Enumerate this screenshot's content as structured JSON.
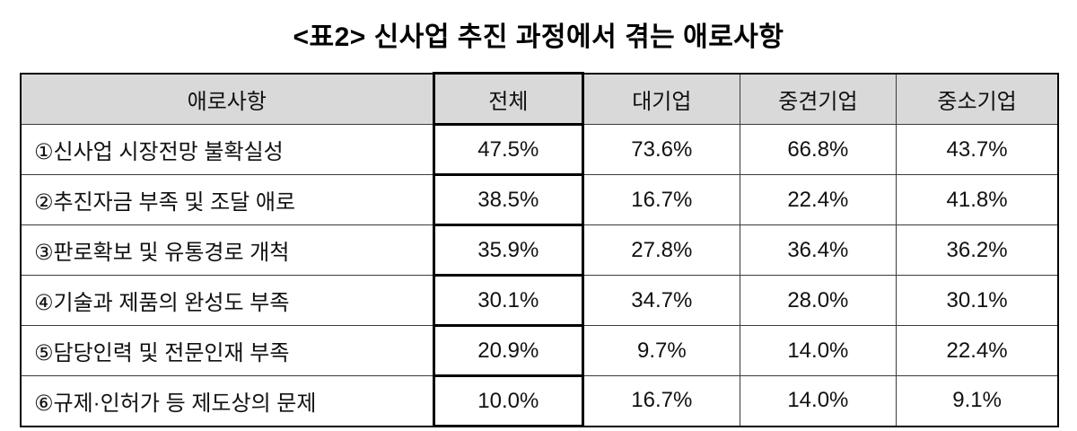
{
  "title": "<표2> 신사업 추진 과정에서 겪는 애로사항",
  "table": {
    "columns": [
      "애로사항",
      "전체",
      "대기업",
      "중견기업",
      "중소기업"
    ],
    "rows": [
      {
        "label": "①신사업 시장전망 불확실성",
        "values": [
          "47.5%",
          "73.6%",
          "66.8%",
          "43.7%"
        ]
      },
      {
        "label": "②추진자금 부족 및 조달 애로",
        "values": [
          "38.5%",
          "16.7%",
          "22.4%",
          "41.8%"
        ]
      },
      {
        "label": "③판로확보 및 유통경로 개척",
        "values": [
          "35.9%",
          "27.8%",
          "36.4%",
          "36.2%"
        ]
      },
      {
        "label": "④기술과 제품의 완성도 부족",
        "values": [
          "30.1%",
          "34.7%",
          "28.0%",
          "30.1%"
        ]
      },
      {
        "label": "⑤담당인력 및 전문인재 부족",
        "values": [
          "20.9%",
          "9.7%",
          "14.0%",
          "22.4%"
        ]
      },
      {
        "label": "⑥규제·인허가 등 제도상의 문제",
        "values": [
          "10.0%",
          "16.7%",
          "14.0%",
          "9.1%"
        ]
      }
    ]
  },
  "colors": {
    "header_background": "#d9d9d9",
    "grid_line": "#3a3a3a",
    "emphasis_border": "#000000",
    "text": "#111111"
  }
}
